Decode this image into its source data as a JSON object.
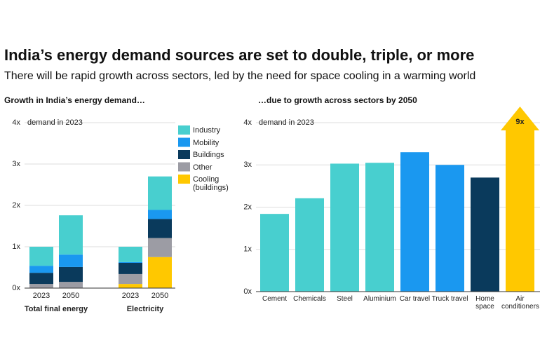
{
  "title": "India’s energy demand sources are set to double, triple, or more",
  "subtitle": "There will be rapid growth across sectors, led by the need for space cooling in a warming world",
  "chart_data": [
    {
      "type": "stacked-bar",
      "title": "Growth in India’s energy demand…",
      "annotation": "demand in 2023",
      "groups": [
        "Total final energy",
        "Electricity"
      ],
      "categories": [
        "2023",
        "2050",
        "2023",
        "2050"
      ],
      "series": [
        {
          "name": "Cooling (buildings)",
          "color": "#ffc800",
          "values": [
            0,
            0,
            0.1,
            0.75
          ]
        },
        {
          "name": "Other",
          "color": "#9c9ca4",
          "values": [
            0.1,
            0.15,
            0.24,
            0.46
          ]
        },
        {
          "name": "Buildings",
          "color": "#0a3a5c",
          "values": [
            0.27,
            0.36,
            0.27,
            0.46
          ]
        },
        {
          "name": "Mobility",
          "color": "#1a98f0",
          "values": [
            0.17,
            0.3,
            0.02,
            0.22
          ]
        },
        {
          "name": "Industry",
          "color": "#48cfcf",
          "values": [
            0.46,
            0.95,
            0.37,
            0.81
          ]
        }
      ],
      "ylim": [
        0,
        4
      ],
      "yticks": [
        {
          "value": 0,
          "label": "0x"
        },
        {
          "value": 1,
          "label": "1x"
        },
        {
          "value": 2,
          "label": "2x"
        },
        {
          "value": 3,
          "label": "3x"
        },
        {
          "value": 4,
          "label": "4x"
        }
      ],
      "grid": true,
      "legend": "top-right"
    },
    {
      "type": "bar",
      "title": "…due to growth across sectors by 2050",
      "annotation": "demand in 2023",
      "categories": [
        "Cement",
        "Chemicals",
        "Steel",
        "Aluminium",
        "Car travel",
        "Truck travel",
        "Home space",
        "Air conditioners"
      ],
      "values": [
        1.84,
        2.21,
        3.03,
        3.05,
        3.3,
        3.0,
        2.7,
        9
      ],
      "value_labels": [
        null,
        null,
        null,
        null,
        null,
        null,
        null,
        "9x"
      ],
      "colors": [
        "#48cfcf",
        "#48cfcf",
        "#48cfcf",
        "#48cfcf",
        "#1a98f0",
        "#1a98f0",
        "#0a3a5c",
        "#ffc800"
      ],
      "ylim": [
        0,
        4
      ],
      "yticks": [
        {
          "value": 0,
          "label": "0x"
        },
        {
          "value": 1,
          "label": "1x"
        },
        {
          "value": 2,
          "label": "2x"
        },
        {
          "value": 3,
          "label": "3x"
        },
        {
          "value": 4,
          "label": "4x"
        }
      ],
      "grid": true
    }
  ]
}
